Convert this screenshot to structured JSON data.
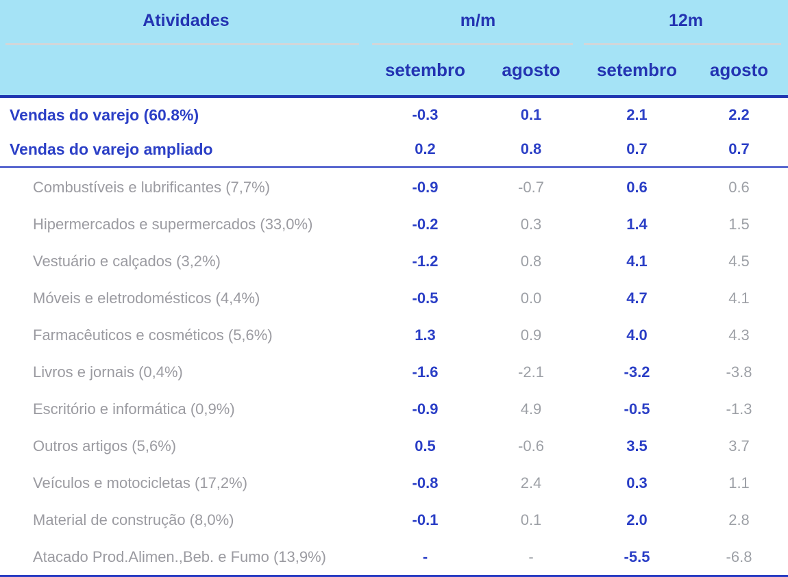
{
  "colors": {
    "header_bg": "#a5e3f6",
    "header_text": "#2434b2",
    "value_blue": "#2b3fc6",
    "gray_text": "#9b9ba1",
    "gray_value": "#9da0a6",
    "line_blue_heavy": "#1f35b0",
    "line_blue": "#2a3dc2",
    "underline_gray": "#d2d6d9"
  },
  "header": {
    "activities_label": "Atividades",
    "group_mm_label": "m/m",
    "group_12m_label": "12m",
    "subheaders": [
      "setembro",
      "agosto",
      "setembro",
      "agosto"
    ]
  },
  "chart_data": {
    "type": "table",
    "title": "",
    "column_groups": [
      {
        "label": "m/m",
        "columns": [
          "setembro",
          "agosto"
        ]
      },
      {
        "label": "12m",
        "columns": [
          "setembro",
          "agosto"
        ]
      }
    ],
    "columns": [
      "Atividades",
      "m/m setembro",
      "m/m agosto",
      "12m setembro",
      "12m agosto"
    ],
    "summary_rows": [
      {
        "label": "Vendas do varejo (60.8%)",
        "values": [
          "-0.3",
          "0.1",
          "2.1",
          "2.2"
        ]
      },
      {
        "label": "Vendas do varejo ampliado",
        "values": [
          "0.2",
          "0.8",
          "0.7",
          "0.7"
        ]
      }
    ],
    "category_rows": [
      {
        "label": "Combustíveis e lubrificantes (7,7%)",
        "values": [
          "-0.9",
          "-0.7",
          "0.6",
          "0.6"
        ]
      },
      {
        "label": "Hipermercados e supermercados (33,0%)",
        "values": [
          "-0.2",
          "0.3",
          "1.4",
          "1.5"
        ]
      },
      {
        "label": "Vestuário e calçados (3,2%)",
        "values": [
          "-1.2",
          "0.8",
          "4.1",
          "4.5"
        ]
      },
      {
        "label": "Móveis e eletrodomésticos (4,4%)",
        "values": [
          "-0.5",
          "0.0",
          "4.7",
          "4.1"
        ]
      },
      {
        "label": "Farmacêuticos e cosméticos (5,6%)",
        "values": [
          "1.3",
          "0.9",
          "4.0",
          "4.3"
        ]
      },
      {
        "label": "Livros e jornais (0,4%)",
        "values": [
          "-1.6",
          "-2.1",
          "-3.2",
          "-3.8"
        ]
      },
      {
        "label": "Escritório e informática (0,9%)",
        "values": [
          "-0.9",
          "4.9",
          "-0.5",
          "-1.3"
        ]
      },
      {
        "label": "Outros artigos (5,6%)",
        "values": [
          "0.5",
          "-0.6",
          "3.5",
          "3.7"
        ]
      },
      {
        "label": "Veículos e motocicletas (17,2%)",
        "values": [
          "-0.8",
          "2.4",
          "0.3",
          "1.1"
        ]
      },
      {
        "label": "Material de construção (8,0%)",
        "values": [
          "-0.1",
          "0.1",
          "2.0",
          "2.8"
        ]
      },
      {
        "label": "Atacado Prod.Alimen.,Beb. e Fumo (13,9%)",
        "values": [
          "-",
          "-",
          "-5.5",
          "-6.8"
        ]
      }
    ]
  }
}
